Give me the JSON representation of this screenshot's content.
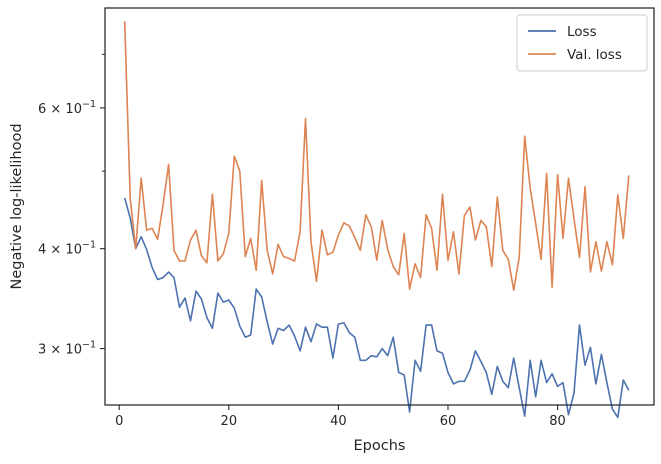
{
  "chart_data": {
    "type": "line",
    "xlabel": "Epochs",
    "ylabel": "Negative log-likelihood",
    "yscale": "log",
    "xlim": [
      -2.6,
      97.6
    ],
    "ylim": [
      0.255,
      0.8
    ],
    "x_ticks": [
      {
        "value": 0,
        "label": "0"
      },
      {
        "value": 20,
        "label": "20"
      },
      {
        "value": 40,
        "label": "40"
      },
      {
        "value": 60,
        "label": "60"
      },
      {
        "value": 80,
        "label": "80"
      }
    ],
    "y_ticks": [
      {
        "value": 0.3,
        "base": "3 × 10",
        "exp": "−1"
      },
      {
        "value": 0.4,
        "base": "4 × 10",
        "exp": "−1"
      },
      {
        "value": 0.6,
        "base": "6 × 10",
        "exp": "−1"
      }
    ],
    "y_minor_ticks": [
      0.5,
      0.7
    ],
    "grid": false,
    "legend_position": "top-right",
    "series": [
      {
        "name": "Loss",
        "color": "#4c72b0",
        "x": [
          1,
          2,
          3,
          4,
          5,
          6,
          7,
          8,
          9,
          10,
          11,
          12,
          13,
          14,
          15,
          16,
          17,
          18,
          19,
          20,
          21,
          22,
          23,
          24,
          25,
          26,
          27,
          28,
          29,
          30,
          31,
          32,
          33,
          34,
          35,
          36,
          37,
          38,
          39,
          40,
          41,
          42,
          43,
          44,
          45,
          46,
          47,
          48,
          49,
          50,
          51,
          52,
          53,
          54,
          55,
          56,
          57,
          58,
          59,
          60,
          61,
          62,
          63,
          64,
          65,
          66,
          67,
          68,
          69,
          70,
          71,
          72,
          73,
          74,
          75,
          76,
          77,
          78,
          79,
          80,
          81,
          82,
          83,
          84,
          85,
          86,
          87,
          88,
          89,
          90,
          91,
          92,
          93
        ],
        "values": [
          0.463,
          0.437,
          0.4,
          0.414,
          0.399,
          0.379,
          0.366,
          0.368,
          0.374,
          0.368,
          0.338,
          0.347,
          0.325,
          0.354,
          0.346,
          0.328,
          0.318,
          0.352,
          0.343,
          0.345,
          0.337,
          0.32,
          0.31,
          0.312,
          0.356,
          0.348,
          0.324,
          0.304,
          0.318,
          0.316,
          0.321,
          0.311,
          0.298,
          0.319,
          0.306,
          0.322,
          0.319,
          0.319,
          0.292,
          0.322,
          0.323,
          0.314,
          0.31,
          0.29,
          0.29,
          0.294,
          0.293,
          0.3,
          0.294,
          0.31,
          0.28,
          0.278,
          0.25,
          0.29,
          0.281,
          0.321,
          0.321,
          0.298,
          0.296,
          0.28,
          0.271,
          0.273,
          0.273,
          0.282,
          0.298,
          0.289,
          0.28,
          0.263,
          0.285,
          0.273,
          0.268,
          0.292,
          0.268,
          0.247,
          0.29,
          0.261,
          0.29,
          0.272,
          0.279,
          0.269,
          0.272,
          0.248,
          0.264,
          0.321,
          0.286,
          0.301,
          0.271,
          0.295,
          0.272,
          0.252,
          0.246,
          0.274,
          0.266
        ]
      },
      {
        "name": "Val. loss",
        "color": "#dd8452",
        "x": [
          1,
          2,
          3,
          4,
          5,
          6,
          7,
          8,
          9,
          10,
          11,
          12,
          13,
          14,
          15,
          16,
          17,
          18,
          19,
          20,
          21,
          22,
          23,
          24,
          25,
          26,
          27,
          28,
          29,
          30,
          31,
          32,
          33,
          34,
          35,
          36,
          37,
          38,
          39,
          40,
          41,
          42,
          43,
          44,
          45,
          46,
          47,
          48,
          49,
          50,
          51,
          52,
          53,
          54,
          55,
          56,
          57,
          58,
          59,
          60,
          61,
          62,
          63,
          64,
          65,
          66,
          67,
          68,
          69,
          70,
          71,
          72,
          73,
          74,
          75,
          76,
          77,
          78,
          79,
          80,
          81,
          82,
          83,
          84,
          85,
          86,
          87,
          88,
          89,
          90,
          91,
          92,
          93
        ],
        "values": [
          0.77,
          0.462,
          0.4,
          0.49,
          0.422,
          0.424,
          0.411,
          0.454,
          0.51,
          0.398,
          0.386,
          0.386,
          0.41,
          0.422,
          0.392,
          0.384,
          0.468,
          0.386,
          0.394,
          0.418,
          0.522,
          0.5,
          0.391,
          0.412,
          0.376,
          0.487,
          0.398,
          0.372,
          0.405,
          0.391,
          0.389,
          0.386,
          0.42,
          0.582,
          0.408,
          0.364,
          0.422,
          0.393,
          0.396,
          0.416,
          0.431,
          0.427,
          0.413,
          0.398,
          0.441,
          0.426,
          0.387,
          0.434,
          0.399,
          0.38,
          0.371,
          0.418,
          0.356,
          0.383,
          0.368,
          0.441,
          0.424,
          0.376,
          0.468,
          0.387,
          0.42,
          0.372,
          0.44,
          0.451,
          0.41,
          0.434,
          0.426,
          0.38,
          0.464,
          0.398,
          0.388,
          0.355,
          0.39,
          0.553,
          0.476,
          0.43,
          0.388,
          0.497,
          0.358,
          0.495,
          0.412,
          0.49,
          0.436,
          0.39,
          0.478,
          0.374,
          0.408,
          0.375,
          0.408,
          0.382,
          0.467,
          0.412,
          0.494
        ]
      }
    ]
  }
}
